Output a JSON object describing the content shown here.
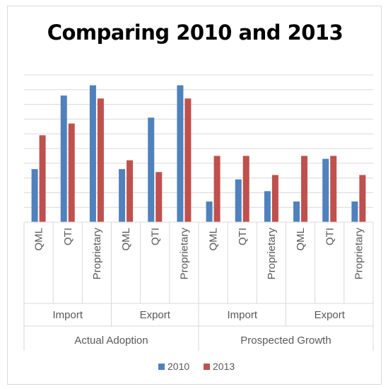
{
  "chart_data": {
    "type": "bar",
    "title": "Comparing 2010 and 2013",
    "xlabel": "",
    "ylabel": "",
    "ylim": [
      0,
      10
    ],
    "y_axis_labels_shown": false,
    "grid": true,
    "legend_position": "bottom",
    "categories": [
      "QML",
      "QTI",
      "Proprietary",
      "QML",
      "QTI",
      "Proprietary",
      "QML",
      "QTI",
      "Proprietary",
      "QML",
      "QTI",
      "Proprietary"
    ],
    "category_groups_level1": [
      {
        "label": "Import",
        "span": 3
      },
      {
        "label": "Export",
        "span": 3
      },
      {
        "label": "Import",
        "span": 3
      },
      {
        "label": "Export",
        "span": 3
      }
    ],
    "category_groups_level2": [
      {
        "label": "Actual Adoption",
        "span": 6
      },
      {
        "label": "Prospected Growth",
        "span": 6
      }
    ],
    "series": [
      {
        "name": "2010",
        "color": "#4f81bd",
        "values": [
          3.6,
          8.6,
          9.3,
          3.6,
          7.1,
          9.3,
          1.4,
          2.9,
          2.1,
          1.4,
          4.3,
          1.4
        ]
      },
      {
        "name": "2013",
        "color": "#c0504d",
        "values": [
          5.9,
          6.7,
          8.4,
          4.2,
          3.4,
          8.4,
          4.5,
          4.5,
          3.2,
          4.5,
          4.5,
          3.2
        ]
      }
    ]
  }
}
